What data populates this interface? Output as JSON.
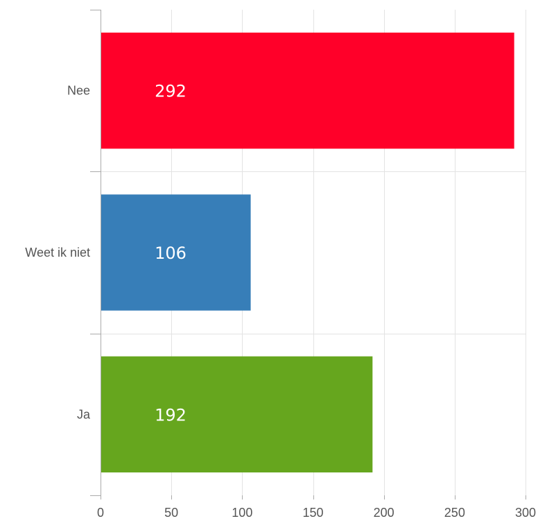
{
  "chart_data": {
    "type": "bar",
    "orientation": "horizontal",
    "categories": [
      "Nee",
      "Weet ik niet",
      "Ja"
    ],
    "values": [
      292,
      106,
      192
    ],
    "colors": [
      "#ff0029",
      "#377eb8",
      "#66a61e"
    ],
    "data_labels": [
      "292",
      "106",
      "192"
    ],
    "xlim": [
      0,
      300
    ],
    "xticks": [
      0,
      50,
      100,
      150,
      200,
      250,
      300
    ],
    "xtick_labels": [
      "0",
      "50",
      "100",
      "150",
      "200",
      "250",
      "300"
    ],
    "grid": true,
    "legend": "none",
    "title": "",
    "xlabel": "",
    "ylabel": ""
  }
}
